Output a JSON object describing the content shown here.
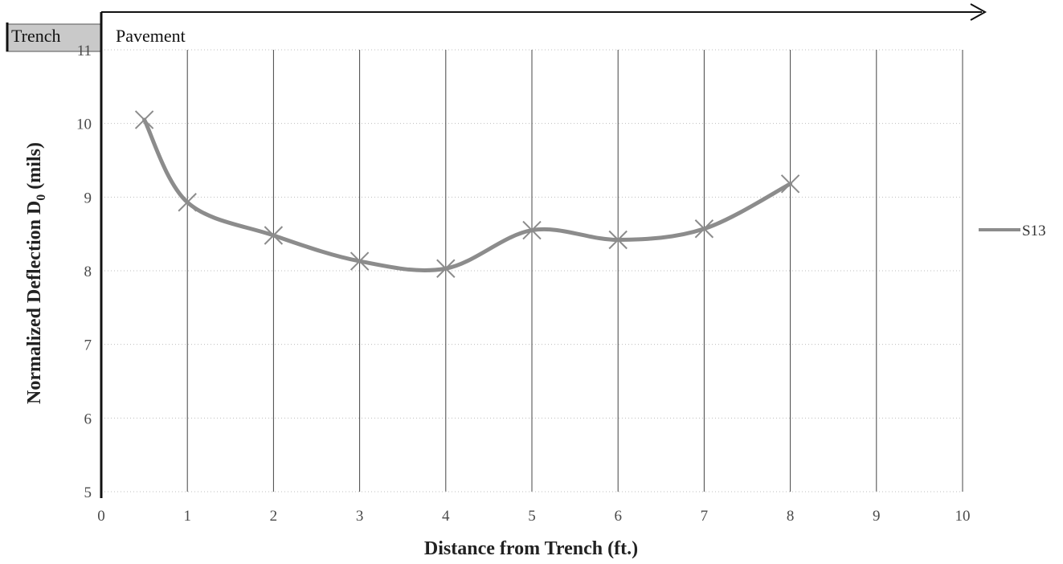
{
  "chart_data": {
    "type": "line",
    "title": "",
    "xlabel": "Distance from Trench (ft.)",
    "ylabel_main": "Normalized Deflection D",
    "ylabel_sub": "0",
    "ylabel_tail": " (mils)",
    "xlim": [
      0,
      10
    ],
    "ylim": [
      5,
      11
    ],
    "x_ticks": [
      0,
      1,
      2,
      3,
      4,
      5,
      6,
      7,
      8,
      9,
      10
    ],
    "y_ticks": [
      5,
      6,
      7,
      8,
      9,
      10,
      11
    ],
    "grid": "vertical solid, horizontal dotted",
    "legend_position": "right",
    "regions": [
      "Trench",
      "Pavement"
    ],
    "series": [
      {
        "name": "S13",
        "color": "#8c8c8c",
        "marker": "x",
        "smooth": true,
        "x": [
          0.5,
          1,
          2,
          3,
          4,
          5,
          6,
          7,
          8
        ],
        "y": [
          10.05,
          8.93,
          8.48,
          8.13,
          8.03,
          8.55,
          8.42,
          8.57,
          9.18
        ]
      }
    ]
  }
}
